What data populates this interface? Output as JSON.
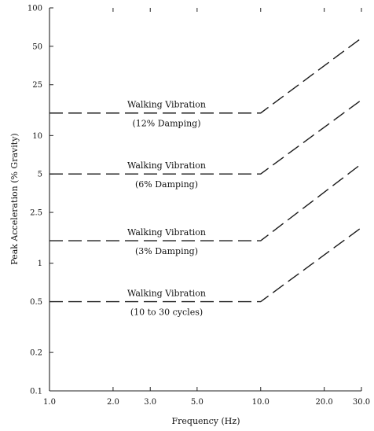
{
  "chart_data": {
    "type": "line",
    "xlabel": "Frequency (Hz)",
    "ylabel": "Peak Acceleration (% Gravity)",
    "xscale": "log",
    "yscale": "log",
    "xlim": [
      1.0,
      30.0
    ],
    "ylim": [
      0.1,
      100
    ],
    "x_ticks": [
      1.0,
      2.0,
      3.0,
      5.0,
      10.0,
      20.0,
      30.0
    ],
    "x_tick_labels": [
      "1.0",
      "2.0",
      "3.0",
      "5.0",
      "10.0",
      "20.0",
      "30.0"
    ],
    "y_ticks": [
      0.1,
      0.2,
      0.5,
      1,
      2.5,
      5,
      10,
      25,
      50,
      100
    ],
    "y_tick_labels": [
      "0.1",
      "0.2",
      "0.5",
      "1",
      "2.5",
      "5",
      "10",
      "25",
      "50",
      "100"
    ],
    "line_style": "dashed",
    "series": [
      {
        "label_line1": "Walking Vibration",
        "label_line2": "(12% Damping)",
        "x": [
          1.0,
          10.0,
          30.0
        ],
        "y": [
          15,
          15,
          58
        ]
      },
      {
        "label_line1": "Walking Vibration",
        "label_line2": "(6% Damping)",
        "x": [
          1.0,
          10.0,
          30.0
        ],
        "y": [
          5,
          5,
          19
        ]
      },
      {
        "label_line1": "Walking Vibration",
        "label_line2": "(3% Damping)",
        "x": [
          1.0,
          10.0,
          30.0
        ],
        "y": [
          1.5,
          1.5,
          6
        ]
      },
      {
        "label_line1": "Walking Vibration",
        "label_line2": "(10 to 30 cycles)",
        "x": [
          1.0,
          10.0,
          30.0
        ],
        "y": [
          0.5,
          0.5,
          1.9
        ]
      }
    ]
  }
}
